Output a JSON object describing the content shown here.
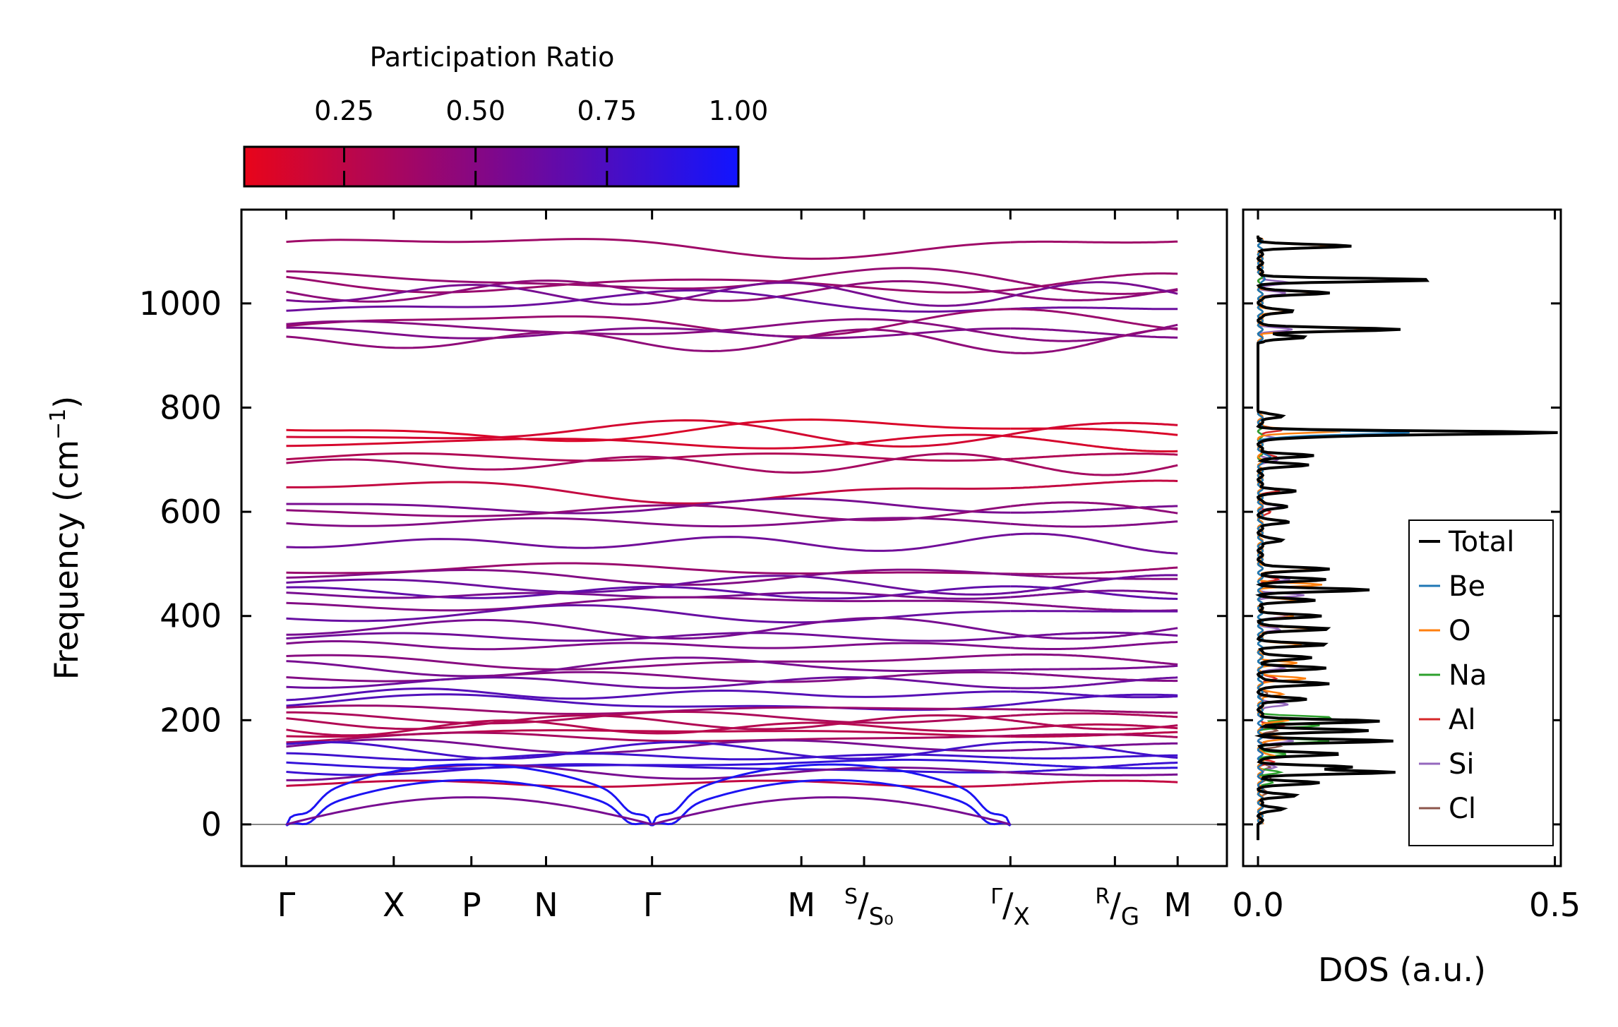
{
  "colors": {
    "low": "#e8051a",
    "high": "#1114ff",
    "zero_line": "#888888",
    "total": "#000000",
    "Be": "#1f77b4",
    "O": "#ff7f0e",
    "Na": "#2ca02c",
    "Al": "#d62728",
    "Si": "#9467bd",
    "Cl": "#8c564b"
  },
  "colorbar": {
    "title": "Participation Ratio",
    "ticks": [
      0.25,
      0.5,
      0.75,
      1.0
    ],
    "tick_labels": [
      "0.25",
      "0.50",
      "0.75",
      "1.00"
    ],
    "range": [
      0.06,
      1.0
    ]
  },
  "chart_data": [
    {
      "type": "line",
      "name": "phonon-band-structure",
      "title": "",
      "ylabel": "Frequency (cm",
      "ylabel_sup": "−1",
      "ylabel_close": ")",
      "ylim": [
        -80,
        1180
      ],
      "yticks": [
        0,
        200,
        400,
        600,
        800,
        1000
      ],
      "ytick_labels": [
        "0",
        "200",
        "400",
        "600",
        "800",
        "1000"
      ],
      "xlim": [
        -0.3,
        6.3
      ],
      "kpoint_positions": [
        0,
        0.72,
        1.24,
        1.74,
        2.45,
        3.45,
        3.87,
        4.85,
        5.55,
        5.97
      ],
      "segment_breaks": [
        0,
        4.85,
        5.97
      ],
      "kpoint_labels": [
        {
          "main": "Γ",
          "sup": "",
          "sub": "",
          "x": 0
        },
        {
          "main": "X",
          "sup": "",
          "sub": "",
          "x": 0.72
        },
        {
          "main": "P",
          "sup": "",
          "sub": "",
          "x": 1.24
        },
        {
          "main": "N",
          "sup": "",
          "sub": "",
          "x": 1.74
        },
        {
          "main": "Γ",
          "sup": "",
          "sub": "",
          "x": 2.45
        },
        {
          "main": "M",
          "sup": "",
          "sub": "",
          "x": 3.45
        },
        {
          "main": "/",
          "sup": "S",
          "sub": "S₀",
          "x": 3.87
        },
        {
          "main": "/",
          "sup": "Γ",
          "sub": "X",
          "x": 4.85
        },
        {
          "main": "/",
          "sup": "R",
          "sub": "G",
          "x": 5.55
        },
        {
          "main": "M",
          "sup": "",
          "sub": "",
          "x": 5.97
        }
      ],
      "bands": [
        {
          "f": 1110,
          "pr": 0.38
        },
        {
          "f": 1043,
          "pr": 0.42
        },
        {
          "f": 1036,
          "pr": 0.4
        },
        {
          "f": 1024,
          "pr": 0.45
        },
        {
          "f": 1018,
          "pr": 0.55
        },
        {
          "f": 1000,
          "pr": 0.6
        },
        {
          "f": 962,
          "pr": 0.4
        },
        {
          "f": 952,
          "pr": 0.48
        },
        {
          "f": 943,
          "pr": 0.52
        },
        {
          "f": 928,
          "pr": 0.45
        },
        {
          "f": 757,
          "pr": 0.12
        },
        {
          "f": 752,
          "pr": 0.15
        },
        {
          "f": 733,
          "pr": 0.14
        },
        {
          "f": 705,
          "pr": 0.3
        },
        {
          "f": 692,
          "pr": 0.35
        },
        {
          "f": 640,
          "pr": 0.22
        },
        {
          "f": 610,
          "pr": 0.55
        },
        {
          "f": 600,
          "pr": 0.45
        },
        {
          "f": 580,
          "pr": 0.5
        },
        {
          "f": 540,
          "pr": 0.58
        },
        {
          "f": 488,
          "pr": 0.4
        },
        {
          "f": 476,
          "pr": 0.5
        },
        {
          "f": 460,
          "pr": 0.6
        },
        {
          "f": 445,
          "pr": 0.65
        },
        {
          "f": 440,
          "pr": 0.55
        },
        {
          "f": 425,
          "pr": 0.5
        },
        {
          "f": 403,
          "pr": 0.62
        },
        {
          "f": 376,
          "pr": 0.55
        },
        {
          "f": 360,
          "pr": 0.58
        },
        {
          "f": 343,
          "pr": 0.52
        },
        {
          "f": 312,
          "pr": 0.48
        },
        {
          "f": 303,
          "pr": 0.55
        },
        {
          "f": 283,
          "pr": 0.5
        },
        {
          "f": 272,
          "pr": 0.6
        },
        {
          "f": 250,
          "pr": 0.7
        },
        {
          "f": 232,
          "pr": 0.72
        },
        {
          "f": 220,
          "pr": 0.4
        },
        {
          "f": 205,
          "pr": 0.32
        },
        {
          "f": 196,
          "pr": 0.3
        },
        {
          "f": 186,
          "pr": 0.28
        },
        {
          "f": 176,
          "pr": 0.26
        },
        {
          "f": 166,
          "pr": 0.34
        },
        {
          "f": 150,
          "pr": 0.55
        },
        {
          "f": 142,
          "pr": 0.78
        },
        {
          "f": 130,
          "pr": 0.8
        },
        {
          "f": 115,
          "pr": 0.85
        },
        {
          "f": 107,
          "pr": 0.82
        },
        {
          "f": 100,
          "pr": 0.55
        },
        {
          "f": 78,
          "pr": 0.22
        }
      ],
      "acoustic_modes": [
        {
          "pr": 0.95,
          "peak": 115
        },
        {
          "pr": 0.95,
          "peak": 85
        },
        {
          "pr": 0.55,
          "peak": 52
        }
      ]
    },
    {
      "type": "line",
      "name": "density-of-states",
      "xlabel": "DOS (a.u.)",
      "xlim": [
        -0.025,
        0.51
      ],
      "xticks": [
        0.0,
        0.5
      ],
      "xtick_labels": [
        "0.0",
        "0.5"
      ],
      "ylim": [
        -80,
        1180
      ],
      "series": [
        {
          "name": "Total",
          "key": "total",
          "peaks": [
            [
              1110,
              0.15
            ],
            [
              1045,
              0.29
            ],
            [
              1020,
              0.12
            ],
            [
              985,
              0.06
            ],
            [
              950,
              0.24
            ],
            [
              935,
              0.08
            ],
            [
              783,
              0.04
            ],
            [
              752,
              0.49
            ],
            [
              745,
              0.1
            ],
            [
              708,
              0.09
            ],
            [
              690,
              0.08
            ],
            [
              640,
              0.06
            ],
            [
              610,
              0.05
            ],
            [
              580,
              0.05
            ],
            [
              545,
              0.04
            ],
            [
              490,
              0.12
            ],
            [
              470,
              0.11
            ],
            [
              450,
              0.18
            ],
            [
              430,
              0.09
            ],
            [
              400,
              0.1
            ],
            [
              375,
              0.12
            ],
            [
              345,
              0.11
            ],
            [
              320,
              0.09
            ],
            [
              300,
              0.11
            ],
            [
              270,
              0.12
            ],
            [
              240,
              0.08
            ],
            [
              198,
              0.2
            ],
            [
              180,
              0.18
            ],
            [
              160,
              0.22
            ],
            [
              135,
              0.14
            ],
            [
              110,
              0.15
            ],
            [
              100,
              0.23
            ],
            [
              80,
              0.1
            ],
            [
              55,
              0.06
            ],
            [
              30,
              0.04
            ]
          ]
        },
        {
          "name": "Be",
          "key": "Be",
          "peaks": [
            [
              752,
              0.25
            ],
            [
              745,
              0.04
            ],
            [
              705,
              0.02
            ],
            [
              1045,
              0.01
            ]
          ]
        },
        {
          "name": "O",
          "key": "O",
          "peaks": [
            [
              1110,
              0.12
            ],
            [
              1045,
              0.25
            ],
            [
              1020,
              0.09
            ],
            [
              950,
              0.19
            ],
            [
              985,
              0.04
            ],
            [
              755,
              0.14
            ],
            [
              490,
              0.09
            ],
            [
              460,
              0.1
            ],
            [
              430,
              0.06
            ],
            [
              400,
              0.06
            ],
            [
              375,
              0.08
            ],
            [
              345,
              0.07
            ],
            [
              310,
              0.06
            ],
            [
              280,
              0.08
            ],
            [
              250,
              0.04
            ],
            [
              200,
              0.05
            ],
            [
              165,
              0.05
            ],
            [
              130,
              0.03
            ]
          ]
        },
        {
          "name": "Na",
          "key": "Na",
          "peaks": [
            [
              205,
              0.12
            ],
            [
              190,
              0.1
            ],
            [
              160,
              0.12
            ],
            [
              135,
              0.04
            ],
            [
              100,
              0.03
            ],
            [
              80,
              0.02
            ]
          ]
        },
        {
          "name": "Al",
          "key": "Al",
          "peaks": [
            [
              757,
              0.04
            ],
            [
              705,
              0.03
            ],
            [
              640,
              0.03
            ],
            [
              600,
              0.02
            ],
            [
              470,
              0.03
            ],
            [
              280,
              0.03
            ],
            [
              190,
              0.04
            ],
            [
              120,
              0.02
            ]
          ]
        },
        {
          "name": "Si",
          "key": "Si",
          "peaks": [
            [
              1040,
              0.05
            ],
            [
              1020,
              0.04
            ],
            [
              950,
              0.05
            ],
            [
              740,
              0.03
            ],
            [
              700,
              0.03
            ],
            [
              610,
              0.03
            ],
            [
              470,
              0.05
            ],
            [
              440,
              0.07
            ],
            [
              400,
              0.05
            ],
            [
              375,
              0.03
            ],
            [
              300,
              0.04
            ],
            [
              230,
              0.05
            ],
            [
              160,
              0.06
            ],
            [
              110,
              0.03
            ]
          ]
        },
        {
          "name": "Cl",
          "key": "Cl",
          "peaks": [
            [
              250,
              0.01
            ],
            [
              180,
              0.03
            ],
            [
              150,
              0.03
            ],
            [
              110,
              0.02
            ],
            [
              90,
              0.02
            ],
            [
              60,
              0.015
            ]
          ]
        }
      ]
    }
  ]
}
